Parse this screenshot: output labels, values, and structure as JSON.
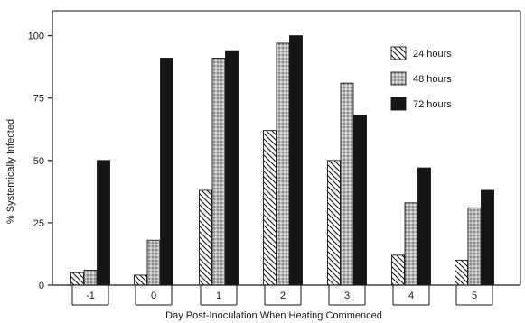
{
  "chart_data": {
    "type": "bar",
    "title": "",
    "xlabel": "Day Post-Inoculation When Heating Commenced",
    "ylabel": "% Systemically Infected",
    "categories": [
      "-1",
      "0",
      "1",
      "2",
      "3",
      "4",
      "5"
    ],
    "series": [
      {
        "name": "24 hours",
        "values": [
          5,
          4,
          38,
          62,
          50,
          12,
          10
        ],
        "pattern": "diagonal-hatch"
      },
      {
        "name": "48 hours",
        "values": [
          6,
          18,
          91,
          97,
          81,
          33,
          31
        ],
        "pattern": "stipple-gray"
      },
      {
        "name": "72 hours",
        "values": [
          50,
          91,
          94,
          100,
          68,
          47,
          38
        ],
        "pattern": "solid-black"
      }
    ],
    "ylim": [
      0,
      110
    ],
    "yticks": [
      0,
      25,
      50,
      75,
      100
    ],
    "grid": false,
    "legend_position": "top-right",
    "colors": {
      "bar_black": "#151515",
      "stipple_base": "#b8b8b8",
      "stroke": "#1a1a1a"
    }
  }
}
